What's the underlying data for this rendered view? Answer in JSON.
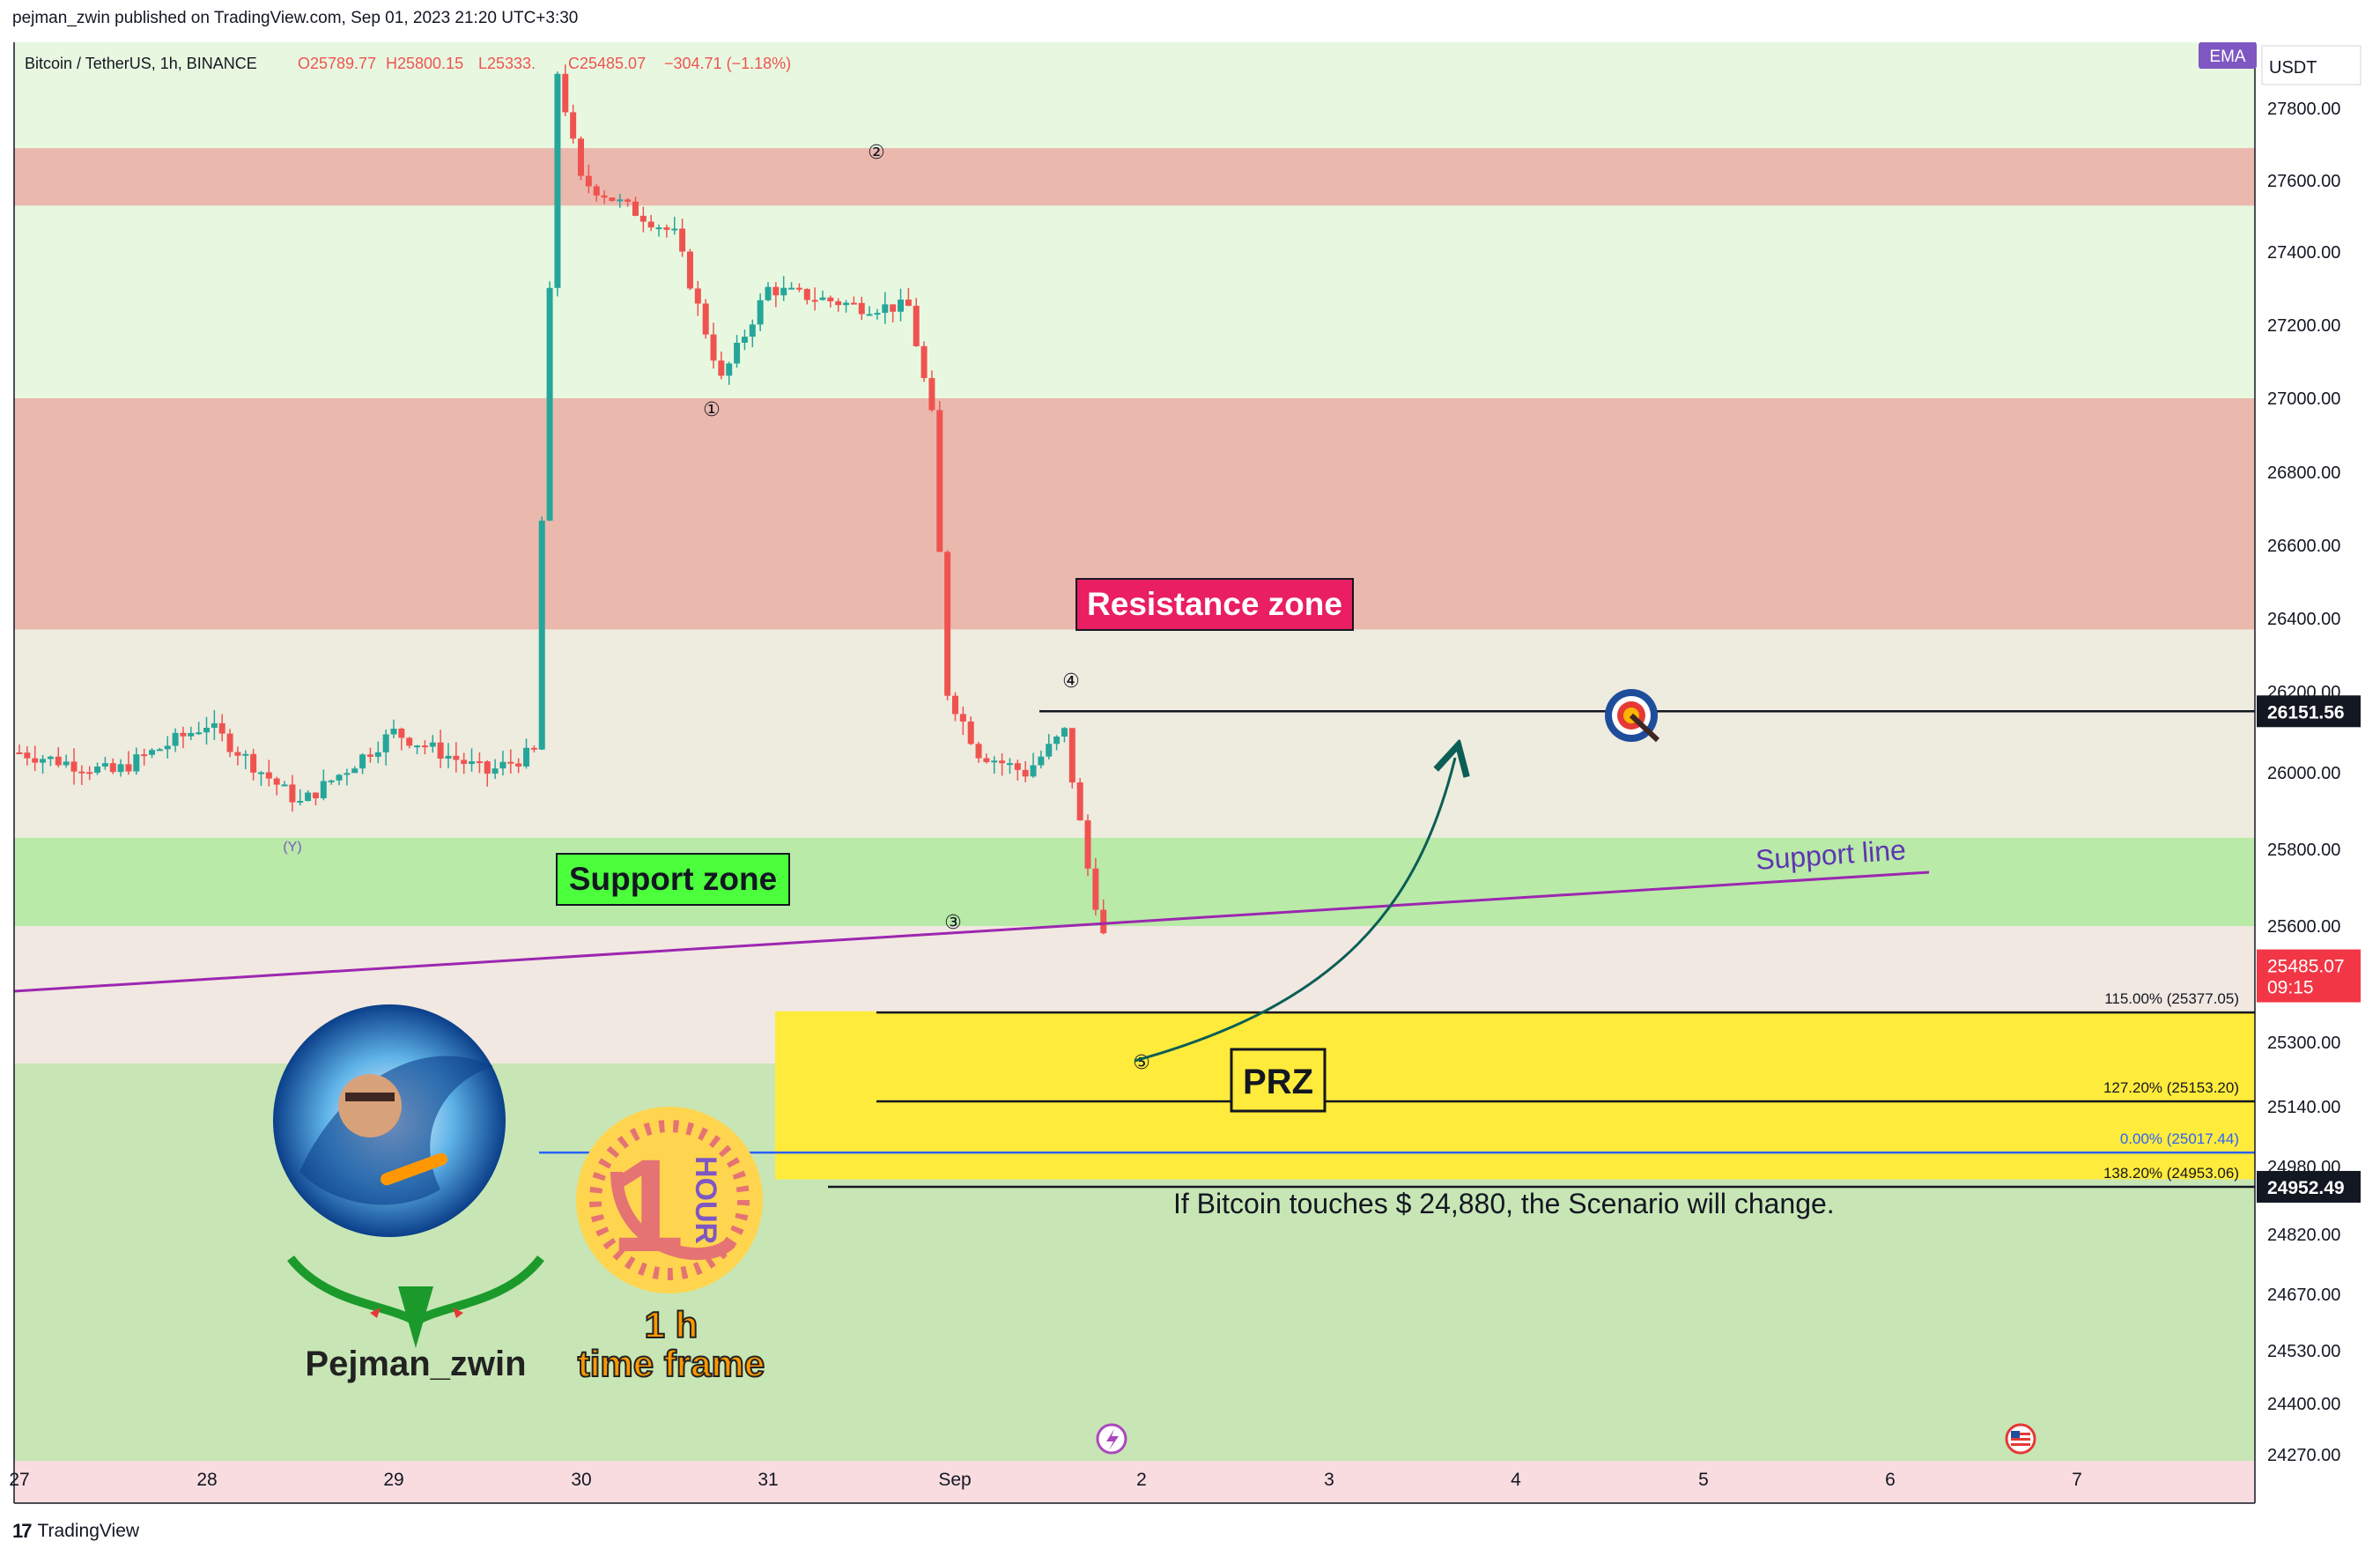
{
  "header": {
    "publish_line": "pejman_zwin published on TradingView.com, Sep 01, 2023 21:20 UTC+3:30"
  },
  "symbol_line": {
    "name": "Bitcoin / TetherUS, 1h, BINANCE",
    "open": "O25789.77",
    "high": "H25800.15",
    "low": "L25333.",
    "close": "C25485.07",
    "change": "−304.71 (−1.18%)"
  },
  "badges": {
    "indicator": "EMA",
    "currency": "USDT"
  },
  "colors": {
    "up": "#26a69a",
    "down": "#ef5350",
    "zone_green": "#b9eaa8",
    "zone_red": "#ebb8ae",
    "prz_yellow": "#ffeb3b",
    "label_red": "#e91e63",
    "support_line": "#9c27b0",
    "arrow": "#0b5e55"
  },
  "chart_data": {
    "type": "candlestick",
    "title": "Bitcoin / TetherUS, 1h, BINANCE",
    "ylim": [
      24270,
      27900
    ],
    "y_ticks": [
      "27800.00",
      "27600.00",
      "27400.00",
      "27200.00",
      "27000.00",
      "26800.00",
      "26600.00",
      "26400.00",
      "26200.00",
      "26000.00",
      "25800.00",
      "25600.00",
      "25300.00",
      "25140.00",
      "24980.00",
      "24820.00",
      "24670.00",
      "24530.00",
      "24400.00",
      "24270.00"
    ],
    "x_ticks": [
      "27",
      "28",
      "29",
      "30",
      "31",
      "Sep",
      "2",
      "3",
      "4",
      "5",
      "6",
      "7"
    ],
    "grid": false,
    "price_path": [
      {
        "x": "Aug 27 00:00",
        "y": 26050
      },
      {
        "x": "Aug 27 12:00",
        "y": 26000
      },
      {
        "x": "Aug 28 00:00",
        "y": 26120
      },
      {
        "x": "Aug 28 12:00",
        "y": 25920
      },
      {
        "x": "Aug 29 00:00",
        "y": 26100
      },
      {
        "x": "Aug 29 12:00",
        "y": 26000
      },
      {
        "x": "Aug 29 18:00",
        "y": 26050
      },
      {
        "x": "Aug 29 21:00",
        "y": 27900
      },
      {
        "x": "Aug 30 00:00",
        "y": 27600
      },
      {
        "x": "Aug 30 12:00",
        "y": 27450
      },
      {
        "x": "Aug 30 18:00",
        "y": 27050
      },
      {
        "x": "Aug 31 00:00",
        "y": 27300
      },
      {
        "x": "Aug 31 12:00",
        "y": 27250
      },
      {
        "x": "Aug 31 18:00",
        "y": 27250
      },
      {
        "x": "Aug 31 21:00",
        "y": 26950
      },
      {
        "x": "Aug 31 23:00",
        "y": 26200
      },
      {
        "x": "Sep 01 03:00",
        "y": 26050
      },
      {
        "x": "Sep 01 09:00",
        "y": 26000
      },
      {
        "x": "Sep 01 14:00",
        "y": 26100
      },
      {
        "x": "Sep 01 17:00",
        "y": 25750
      },
      {
        "x": "Sep 01 20:00",
        "y": 25485
      }
    ],
    "zones": [
      {
        "name": "Resistance zone",
        "from": 26370,
        "to": 27000
      },
      {
        "name": "upper resistance",
        "from": 27530,
        "to": 27690
      },
      {
        "name": "Support zone",
        "from": 25600,
        "to": 25830
      },
      {
        "name": "PRZ",
        "from": 24950,
        "to": 25380
      }
    ],
    "fibonacci": [
      {
        "label": "115.00% (25377.05)",
        "value": 25377.05
      },
      {
        "label": "127.20% (25153.20)",
        "value": 25153.2
      },
      {
        "label": "0.00% (25017.44)",
        "value": 25017.44
      },
      {
        "label": "138.20% (24953.06)",
        "value": 24953.06
      }
    ],
    "horizontal_line": 26151.56,
    "current_price": 25485.07,
    "countdown": "09:15",
    "stop_level": 24952.49,
    "wave_labels": [
      "(Y)",
      "①",
      "②",
      "③",
      "④",
      "⑤"
    ]
  },
  "annotations": {
    "resistance": "Resistance zone",
    "support": "Support zone",
    "support_line": "Support line",
    "prz": "PRZ",
    "scenario": "If Bitcoin touches $ 24,880, the Scenario will change."
  },
  "price_tags": {
    "target": "26151.56",
    "current": "25485.07",
    "countdown": "09:15",
    "stop": "24952.49"
  },
  "branding": {
    "author": "Pejman_zwin",
    "timeframe_line1": "1 h",
    "timeframe_line2": "time frame",
    "badge_number": "1",
    "badge_word": "HOUR"
  },
  "footer": {
    "logo": "17",
    "brand": "TradingView"
  }
}
